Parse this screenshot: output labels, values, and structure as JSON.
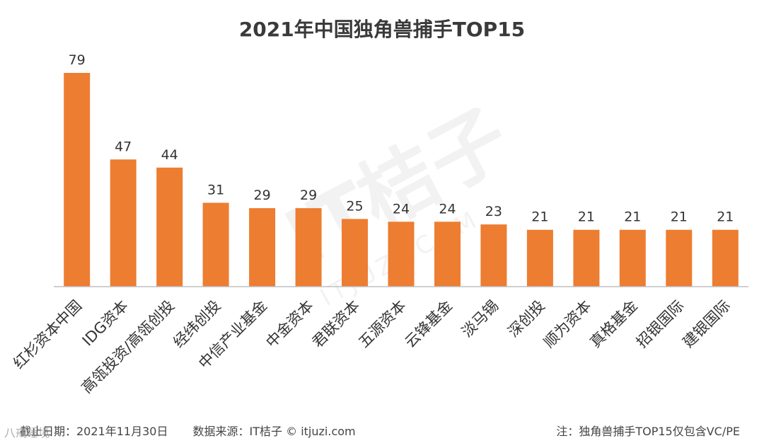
{
  "chart_data": {
    "type": "bar",
    "title": "2021年中国独角兽捕手TOP15",
    "categories": [
      "红杉资本中国",
      "IDG资本",
      "高瓴投资/高瓴创投",
      "经纬创投",
      "中信产业基金",
      "中金资本",
      "君联资本",
      "五源资本",
      "云锋基金",
      "淡马锡",
      "深创投",
      "顺为资本",
      "真格基金",
      "招银国际",
      "建银国际"
    ],
    "values": [
      79,
      47,
      44,
      31,
      29,
      29,
      25,
      24,
      24,
      23,
      21,
      21,
      21,
      21,
      21
    ],
    "xlabel": "",
    "ylabel": "",
    "ylim": [
      0,
      79
    ],
    "grid": false,
    "bar_color": "#ED7D31",
    "show_data_labels": true
  },
  "footer": {
    "date": "截止日期：2021年11月30日",
    "source": "数据来源：IT桔子 © itjuzi.com",
    "note": "注：独角兽捕手TOP15仅包含VC/PE"
  },
  "watermark": {
    "text": "IT桔子",
    "sub": "ITJUZI.COM"
  },
  "corner_mark": {
    "text": "八戒睡境"
  }
}
